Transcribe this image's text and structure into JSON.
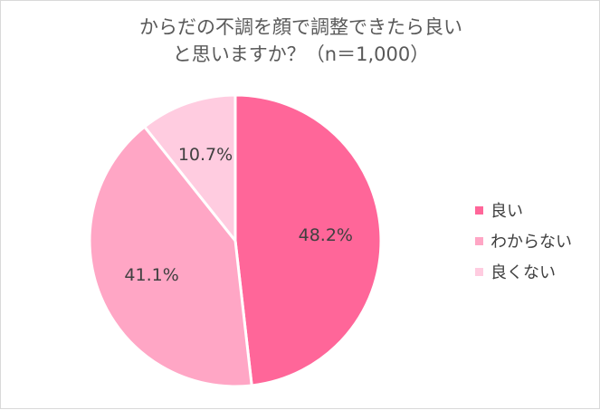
{
  "chart_data": {
    "type": "pie",
    "title_lines": [
      "からだの不調を顔で調整できたら良い",
      "と思いますか？（n＝1,000）"
    ],
    "categories": [
      "良い",
      "わからない",
      "良くない"
    ],
    "values": [
      48.2,
      41.1,
      10.7
    ],
    "data_labels": [
      "48.2%",
      "41.1%",
      "10.7%"
    ],
    "colors": [
      "#ff6699",
      "#ffa6c5",
      "#ffcce0"
    ],
    "start": "12 o'clock",
    "direction": "clockwise",
    "legend_position": "right"
  }
}
